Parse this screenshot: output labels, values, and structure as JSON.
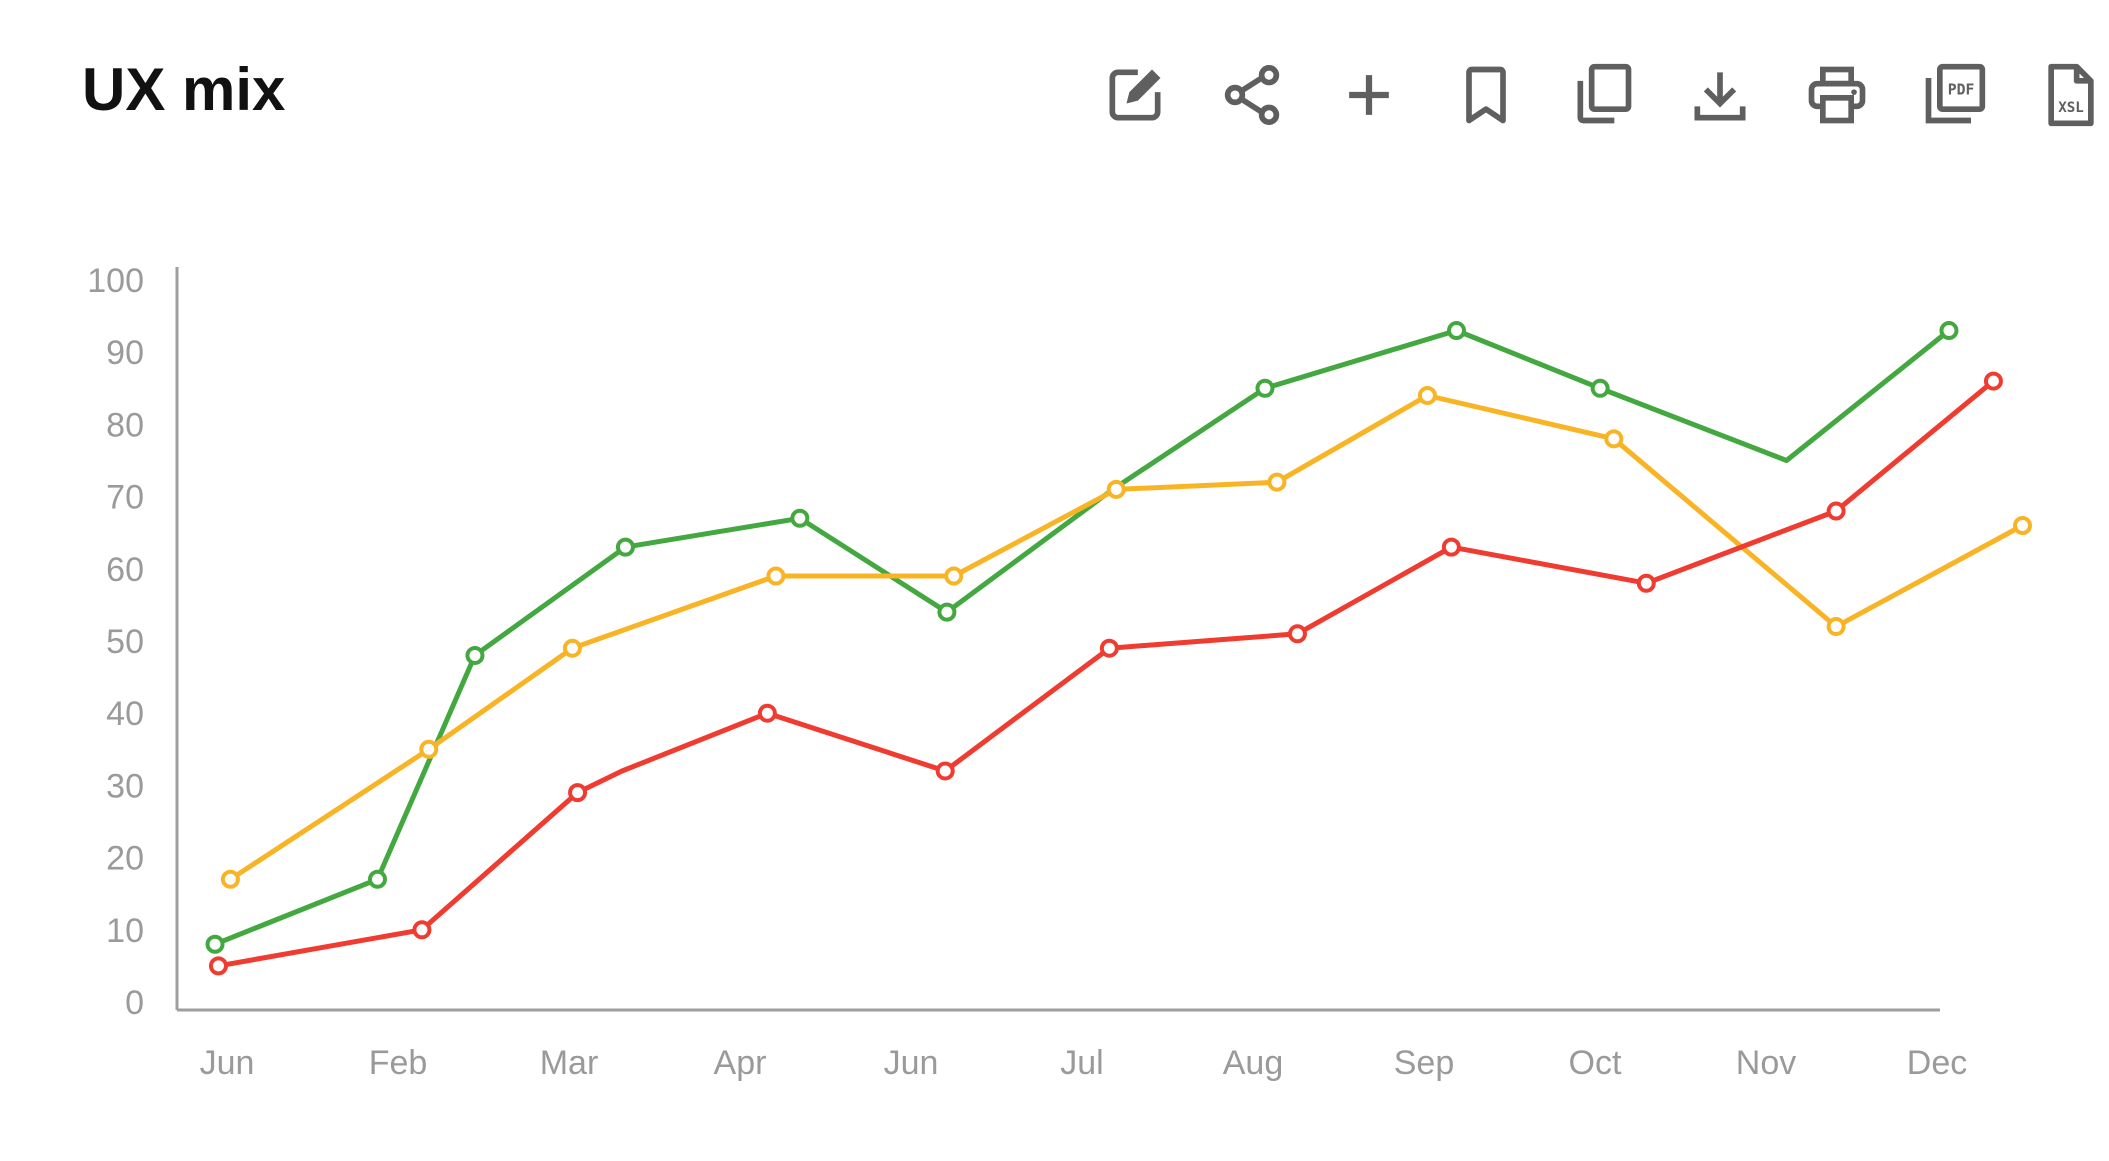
{
  "title": "UX mix",
  "toolbar": {
    "icons": [
      "edit-icon",
      "share-icon",
      "plus-icon",
      "bookmark-icon",
      "copy-icon",
      "download-icon",
      "print-icon",
      "pdf-icon",
      "xsl-icon"
    ],
    "pdf_text": "PDF",
    "xsl_text": "XSL"
  },
  "colors": {
    "green": "#43a83f",
    "yellow": "#f8b425",
    "red": "#f03c30",
    "axis": "#9e9e9e",
    "tick": "#9a9a9a",
    "icon": "#5f5f5f"
  },
  "chart_data": {
    "type": "line",
    "title": "UX mix",
    "xlabel": "",
    "ylabel": "",
    "ylim": [
      0,
      100
    ],
    "yticks": [
      0,
      10,
      20,
      30,
      40,
      50,
      60,
      70,
      80,
      90,
      100
    ],
    "categories": [
      "Jun",
      "Feb",
      "Mar",
      "Apr",
      "Jun",
      "Jul",
      "Aug",
      "Sep",
      "Oct",
      "Nov",
      "Dec"
    ],
    "grid": false,
    "legend": "none",
    "series": [
      {
        "color": "#43a83f",
        "x": [
          -0.07,
          0.88,
          1.45,
          2.33,
          3.35,
          4.21,
          5.18,
          6.07,
          7.19,
          8.03,
          9.12,
          10.07
        ],
        "y": [
          8,
          17,
          48,
          63,
          67,
          54,
          71,
          85,
          93,
          85,
          75,
          93
        ],
        "markers": [
          true,
          true,
          true,
          true,
          true,
          true,
          false,
          true,
          true,
          true,
          false,
          true
        ]
      },
      {
        "color": "#f8b425",
        "x": [
          0.02,
          1.18,
          2.02,
          3.21,
          4.25,
          5.2,
          6.14,
          7.02,
          8.11,
          9.41,
          10.5
        ],
        "y": [
          17,
          35,
          49,
          59,
          59,
          71,
          72,
          84,
          78,
          52,
          66
        ],
        "markers": [
          true,
          true,
          true,
          true,
          true,
          true,
          true,
          true,
          true,
          true,
          true
        ]
      },
      {
        "color": "#f03c30",
        "x": [
          -0.05,
          1.14,
          2.05,
          2.31,
          3.16,
          4.2,
          5.16,
          6.26,
          7.16,
          8.3,
          9.41,
          10.33
        ],
        "y": [
          5,
          10,
          29,
          32,
          40,
          32,
          49,
          51,
          63,
          58,
          68,
          86
        ],
        "markers": [
          true,
          true,
          true,
          false,
          true,
          true,
          true,
          true,
          true,
          true,
          true,
          true
        ]
      }
    ]
  }
}
